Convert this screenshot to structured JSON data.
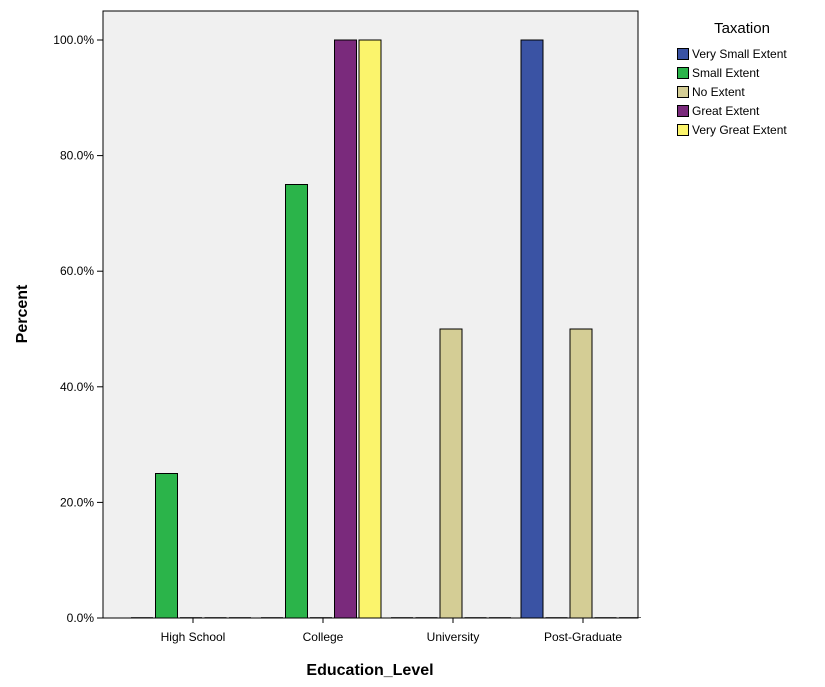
{
  "chart_data": {
    "type": "bar",
    "xlabel": "Education_Level",
    "ylabel": "Percent",
    "categories": [
      "High School",
      "College",
      "University",
      "Post-Graduate"
    ],
    "ylim": [
      0,
      100
    ],
    "yticks": [
      0,
      20,
      40,
      60,
      80,
      100
    ],
    "ytick_labels": [
      "0.0%",
      "20.0%",
      "40.0%",
      "60.0%",
      "80.0%",
      "100.0%"
    ],
    "grid": false,
    "legend_position": "top-right",
    "legend_title": "Taxation",
    "series": [
      {
        "name": "Very Small Extent",
        "color": "#3a53a4",
        "values": [
          0,
          0,
          0,
          100
        ]
      },
      {
        "name": "Small Extent",
        "color": "#2bb44a",
        "values": [
          25,
          75,
          0,
          0
        ]
      },
      {
        "name": "No Extent",
        "color": "#d4cd95",
        "values": [
          0,
          0,
          50,
          50
        ]
      },
      {
        "name": "Great Extent",
        "color": "#7a2a7c",
        "values": [
          0,
          100,
          0,
          0
        ]
      },
      {
        "name": "Very Great Extent",
        "color": "#fbf46c",
        "values": [
          0,
          100,
          0,
          0
        ]
      }
    ]
  }
}
